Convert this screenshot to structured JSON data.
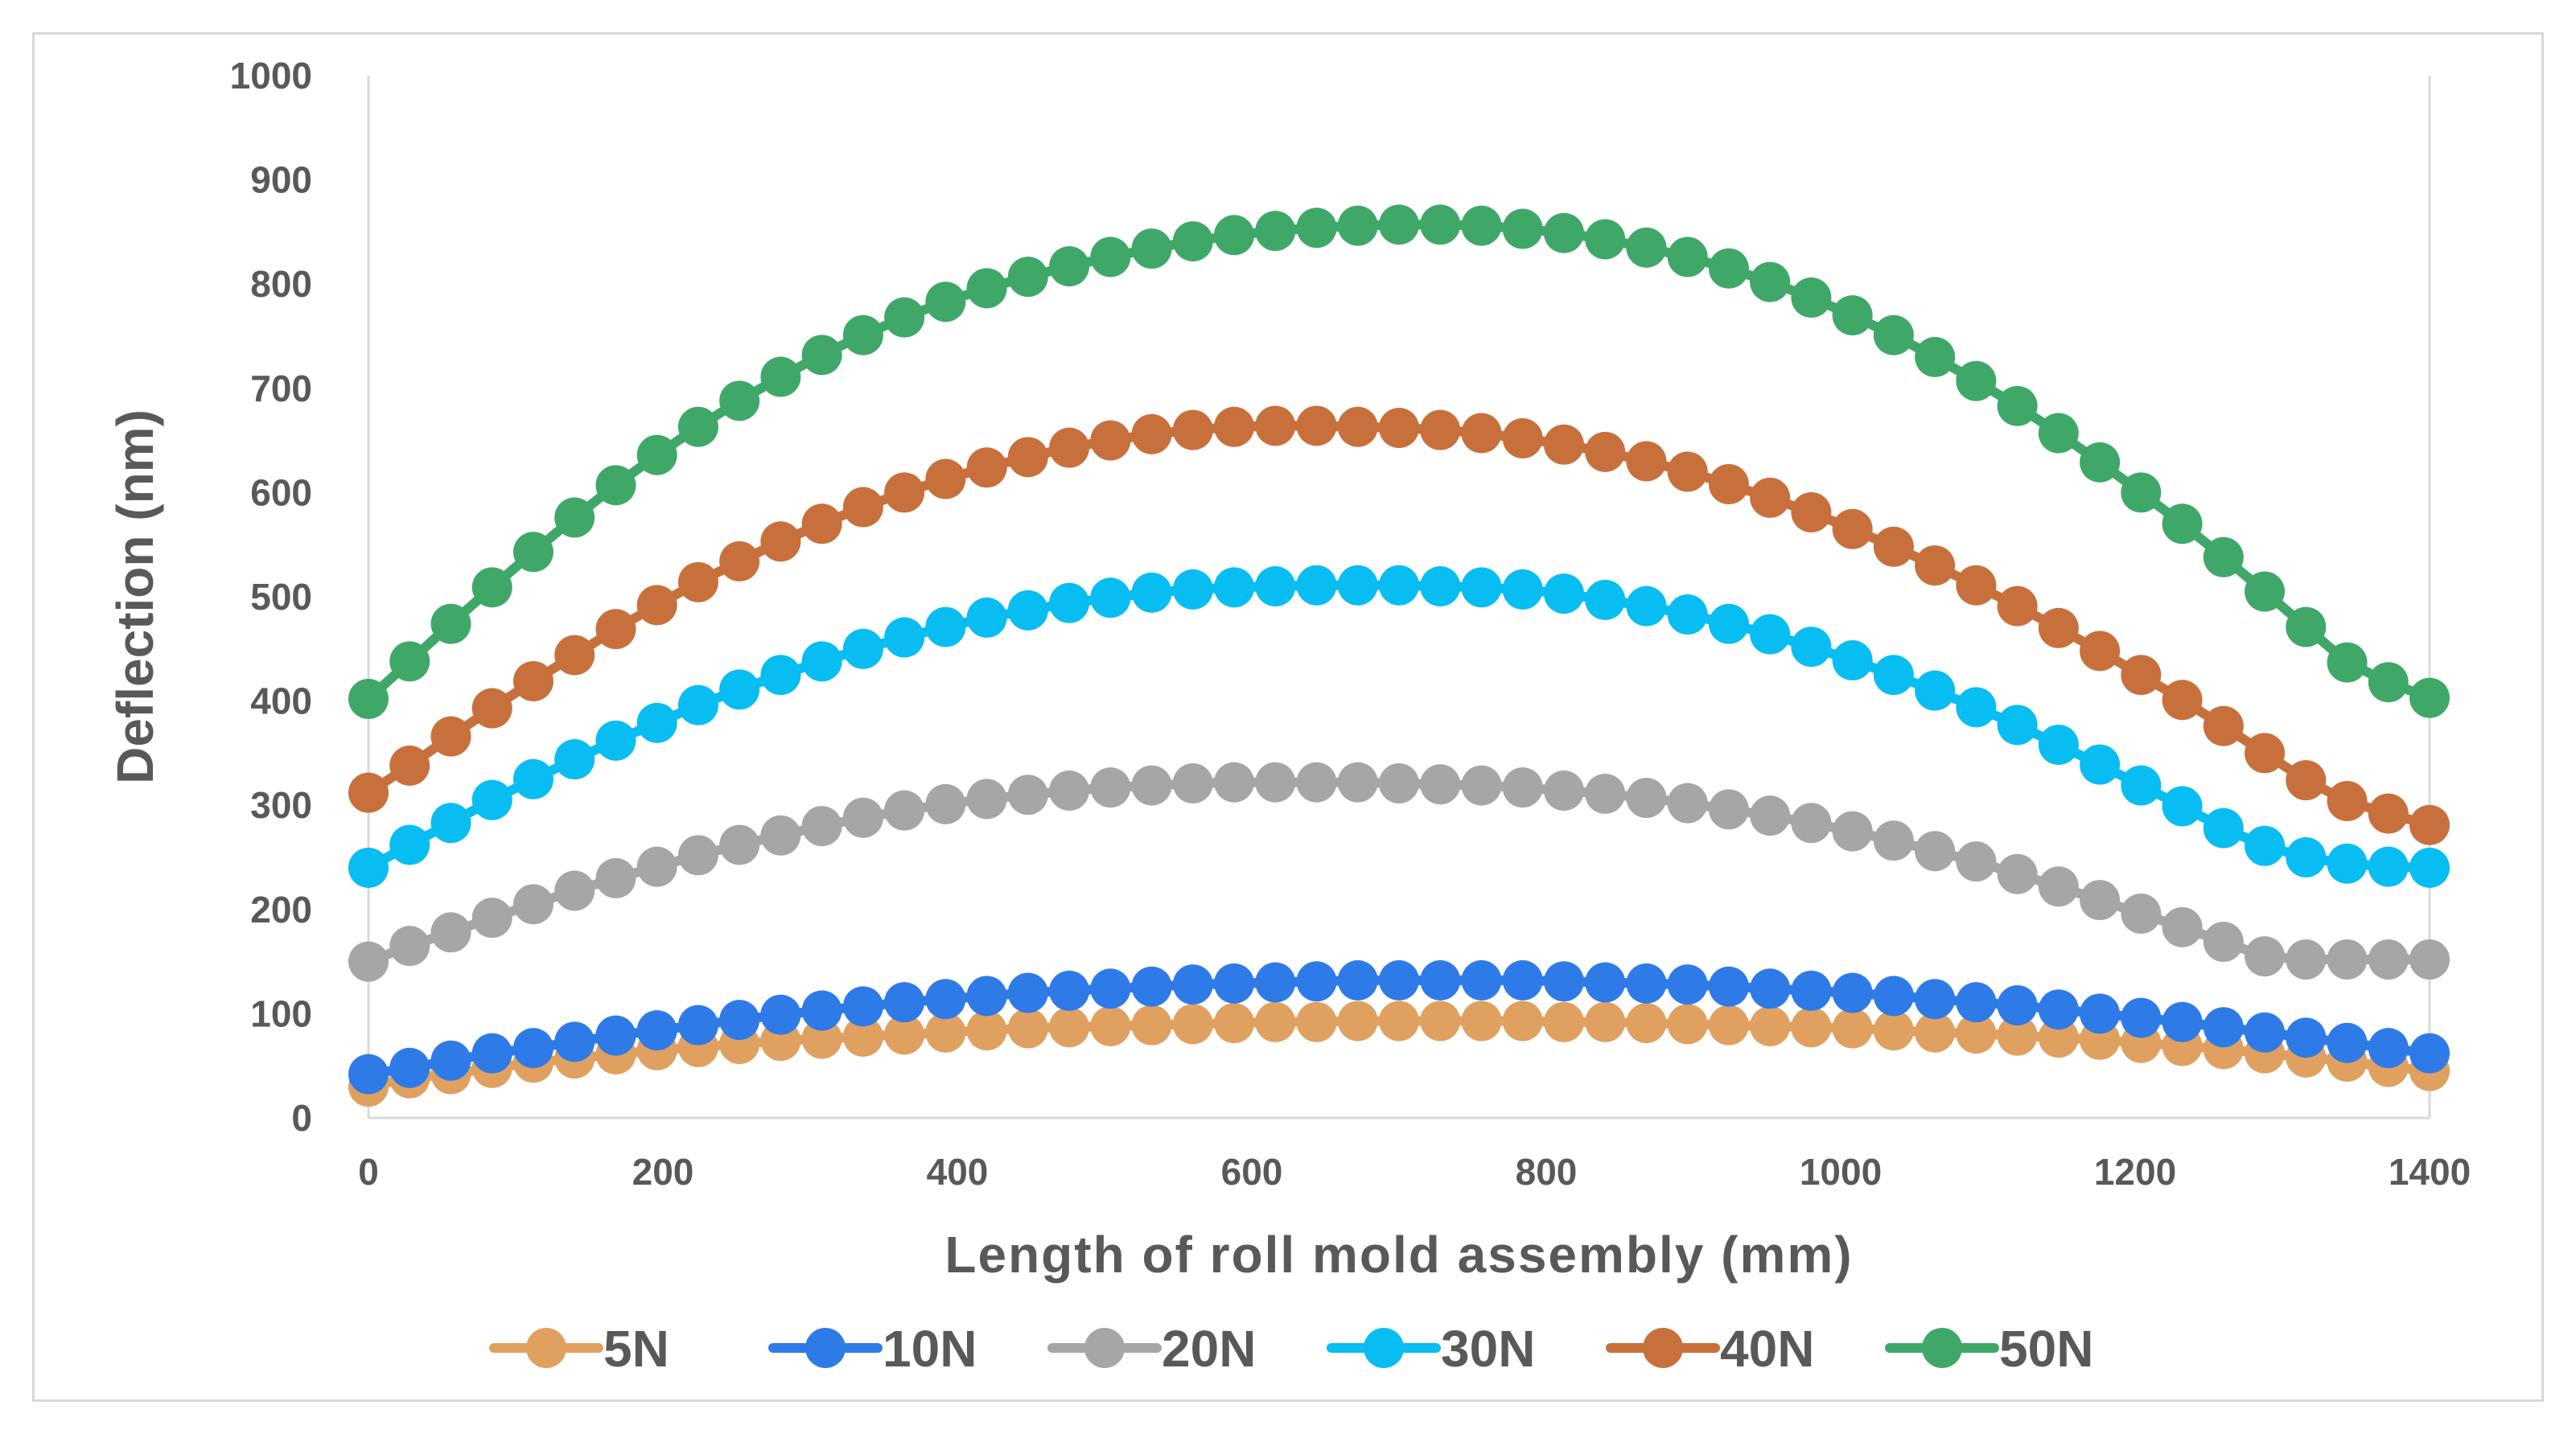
{
  "chart_data": {
    "type": "line",
    "title": "",
    "xlabel": "Length of roll mold assembly (mm)",
    "ylabel": "Deflection (nm)",
    "xlim": [
      0,
      1400
    ],
    "ylim": [
      0,
      1000
    ],
    "xticks": [
      0,
      200,
      400,
      600,
      800,
      1000,
      1200,
      1400
    ],
    "yticks": [
      0,
      100,
      200,
      300,
      400,
      500,
      600,
      700,
      800,
      900,
      1000
    ],
    "grid": false,
    "legend_position": "bottom",
    "x": [
      0,
      28,
      56,
      84,
      112,
      140,
      168,
      196,
      224,
      252,
      280,
      308,
      336,
      364,
      392,
      420,
      448,
      476,
      504,
      532,
      560,
      588,
      616,
      644,
      672,
      700,
      728,
      756,
      784,
      812,
      840,
      868,
      896,
      924,
      952,
      980,
      1008,
      1036,
      1064,
      1092,
      1120,
      1148,
      1176,
      1204,
      1232,
      1260,
      1288,
      1316,
      1344,
      1372,
      1400
    ],
    "series": [
      {
        "name": "5N",
        "color": "#E0A060",
        "values": [
          30,
          38,
          42,
          48,
          53,
          57,
          61,
          65,
          68,
          71,
          74,
          76,
          78,
          80,
          82,
          84,
          86,
          87,
          88,
          89,
          90,
          91,
          92,
          92,
          93,
          93,
          93,
          93,
          93,
          92,
          92,
          91,
          90,
          89,
          88,
          87,
          86,
          84,
          82,
          81,
          79,
          77,
          75,
          72,
          69,
          66,
          62,
          58,
          54,
          49,
          45
        ]
      },
      {
        "name": "10N",
        "color": "#2E7BE8",
        "values": [
          42,
          48,
          55,
          62,
          67,
          73,
          79,
          84,
          89,
          94,
          99,
          103,
          107,
          111,
          114,
          117,
          120,
          122,
          124,
          126,
          128,
          129,
          130,
          131,
          132,
          132,
          132,
          132,
          132,
          131,
          130,
          129,
          128,
          126,
          124,
          122,
          120,
          117,
          114,
          111,
          108,
          104,
          100,
          96,
          92,
          87,
          82,
          77,
          72,
          67,
          62
        ]
      },
      {
        "name": "20N",
        "color": "#A6A6A6",
        "values": [
          150,
          165,
          178,
          192,
          205,
          218,
          230,
          241,
          252,
          262,
          271,
          280,
          288,
          295,
          301,
          306,
          310,
          314,
          317,
          319,
          321,
          322,
          322,
          322,
          322,
          321,
          320,
          319,
          317,
          314,
          311,
          307,
          302,
          296,
          290,
          283,
          275,
          266,
          256,
          246,
          234,
          222,
          209,
          196,
          183,
          169,
          155,
          152,
          152,
          152,
          152
        ]
      },
      {
        "name": "30N",
        "color": "#08BDF2",
        "values": [
          240,
          262,
          283,
          305,
          325,
          344,
          362,
          379,
          396,
          411,
          425,
          438,
          450,
          461,
          471,
          480,
          487,
          494,
          499,
          504,
          507,
          509,
          510,
          511,
          511,
          511,
          510,
          509,
          507,
          503,
          497,
          491,
          483,
          474,
          464,
          452,
          439,
          425,
          410,
          394,
          377,
          358,
          339,
          319,
          299,
          278,
          261,
          250,
          244,
          241,
          240
        ]
      },
      {
        "name": "40N",
        "color": "#C8703C",
        "values": [
          312,
          338,
          366,
          393,
          419,
          444,
          469,
          492,
          514,
          534,
          553,
          570,
          586,
          600,
          613,
          624,
          634,
          643,
          650,
          656,
          660,
          663,
          664,
          664,
          663,
          662,
          660,
          657,
          652,
          646,
          639,
          630,
          620,
          608,
          595,
          581,
          565,
          548,
          530,
          511,
          491,
          470,
          448,
          425,
          401,
          376,
          350,
          324,
          304,
          292,
          281
        ]
      },
      {
        "name": "50N",
        "color": "#3FA869",
        "values": [
          402,
          438,
          474,
          509,
          543,
          576,
          607,
          636,
          663,
          688,
          711,
          732,
          751,
          768,
          783,
          796,
          807,
          817,
          826,
          834,
          841,
          847,
          851,
          854,
          856,
          857,
          857,
          856,
          853,
          849,
          843,
          835,
          826,
          815,
          802,
          787,
          770,
          751,
          730,
          707,
          683,
          657,
          629,
          600,
          570,
          538,
          505,
          471,
          437,
          418,
          403
        ]
      }
    ]
  }
}
